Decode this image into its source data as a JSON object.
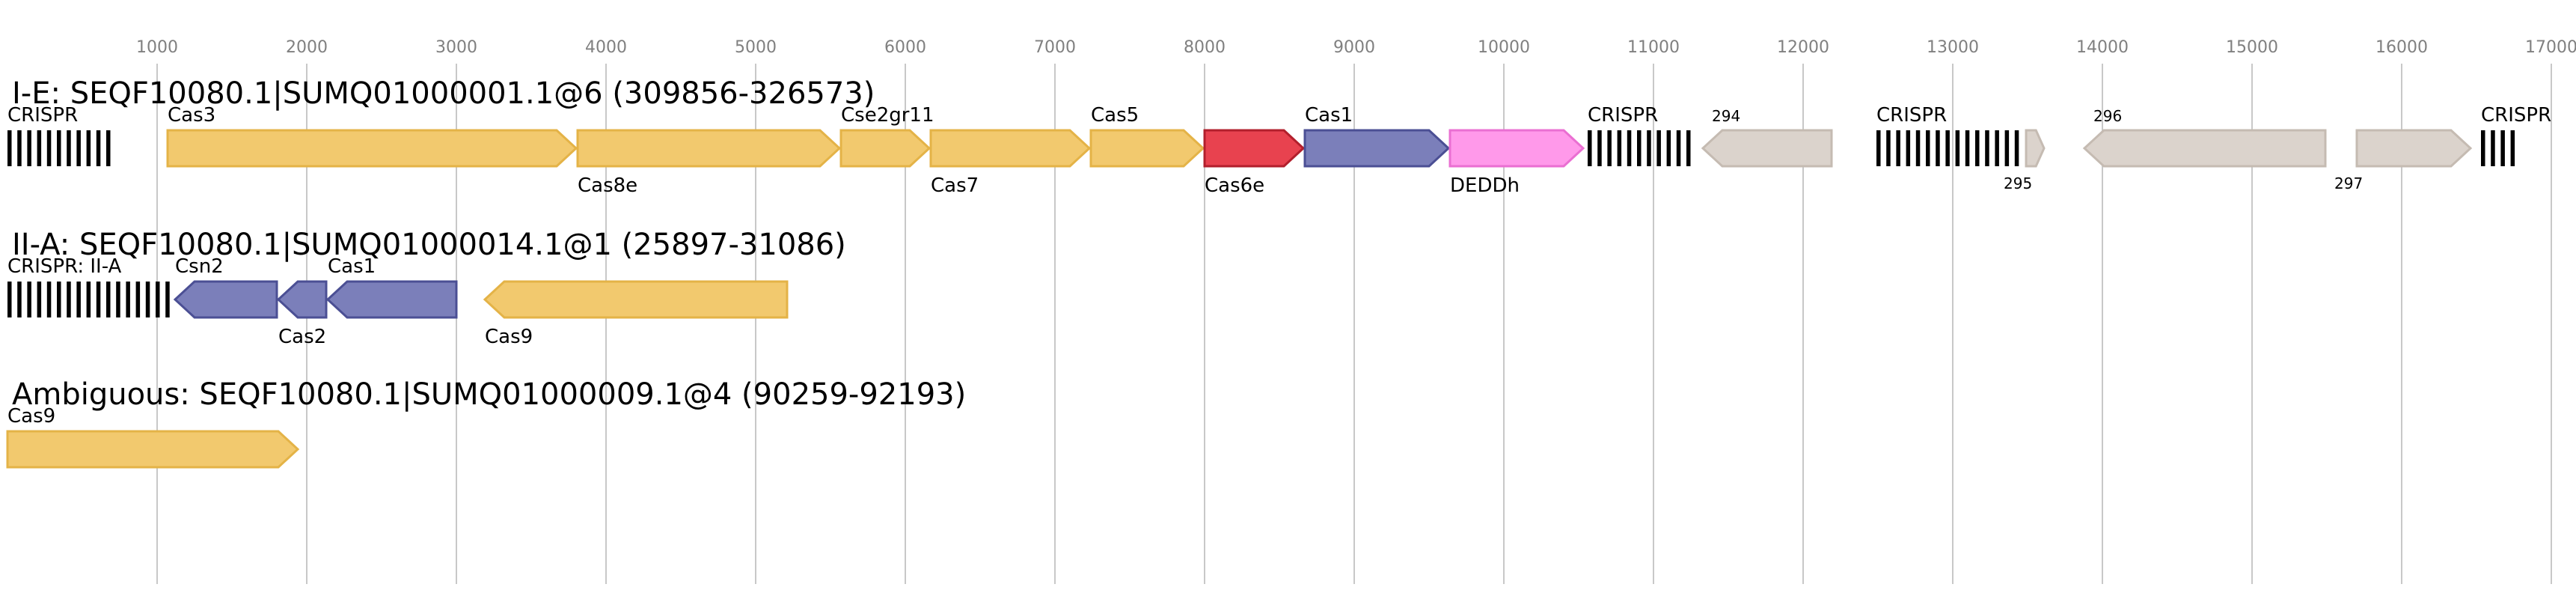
{
  "axis": {
    "ticks": [
      1000,
      2000,
      3000,
      4000,
      5000,
      6000,
      7000,
      8000,
      9000,
      10000,
      11000,
      12000,
      13000,
      14000,
      15000,
      16000,
      17000
    ],
    "gridlines": true,
    "grid_color": "#c8c8c8",
    "tick_color": "#808080"
  },
  "colors": {
    "cas_yellow": "#f2c96e",
    "cas_yellow_stroke": "#e4b347",
    "cas_red": "#e8424f",
    "cas_red_stroke": "#b21f2c",
    "cas_blue": "#7b7fba",
    "cas_blue_stroke": "#4b4f94",
    "cas_pink": "#ff99ea",
    "cas_pink_stroke": "#ea6fd2",
    "other_gray": "#dbd3cc",
    "other_gray_stroke": "#c5bbb2",
    "crispr_black": "#000000"
  },
  "tracks": [
    {
      "title": "I-E: SEQF10080.1|SUMQ01000001.1@6 (309856-326573)",
      "features": [
        {
          "kind": "crispr",
          "label": "CRISPR",
          "label_pos": "above",
          "start": 0,
          "end": 700
        },
        {
          "kind": "gene",
          "label": "Cas3",
          "label_pos": "above",
          "start": 1070,
          "end": 3800,
          "strand": 1,
          "color": "yellow"
        },
        {
          "kind": "gene",
          "label": "Cas8e",
          "label_pos": "below",
          "start": 3810,
          "end": 5560,
          "strand": 1,
          "color": "yellow"
        },
        {
          "kind": "gene",
          "label": "Cse2gr11",
          "label_pos": "above",
          "start": 5570,
          "end": 6160,
          "strand": 1,
          "color": "yellow"
        },
        {
          "kind": "gene",
          "label": "Cas7",
          "label_pos": "below",
          "start": 6170,
          "end": 7230,
          "strand": 1,
          "color": "yellow"
        },
        {
          "kind": "gene",
          "label": "Cas5",
          "label_pos": "above",
          "start": 7240,
          "end": 7990,
          "strand": 1,
          "color": "yellow"
        },
        {
          "kind": "gene",
          "label": "Cas6e",
          "label_pos": "below",
          "start": 8000,
          "end": 8660,
          "strand": 1,
          "color": "red"
        },
        {
          "kind": "gene",
          "label": "Cas1",
          "label_pos": "above",
          "start": 8670,
          "end": 9630,
          "strand": 1,
          "color": "blue"
        },
        {
          "kind": "gene",
          "label": "DEDDh",
          "label_pos": "below",
          "start": 9640,
          "end": 10530,
          "strand": 1,
          "color": "pink"
        },
        {
          "kind": "crispr",
          "label": "CRISPR",
          "label_pos": "above",
          "start": 10560,
          "end": 11260
        },
        {
          "kind": "gene",
          "label": "294",
          "label_pos": "above_small",
          "start": 11330,
          "end": 12190,
          "strand": -1,
          "color": "gray"
        },
        {
          "kind": "crispr",
          "label": "CRISPR",
          "label_pos": "above",
          "start": 12490,
          "end": 13490
        },
        {
          "kind": "gene",
          "label": "295",
          "label_pos": "below_small",
          "start": 13490,
          "end": 13610,
          "strand": 1,
          "color": "gray"
        },
        {
          "kind": "gene",
          "label": "296",
          "label_pos": "above_small",
          "start": 13880,
          "end": 15490,
          "strand": -1,
          "color": "gray"
        },
        {
          "kind": "gene",
          "label": "297",
          "label_pos": "below_small",
          "start": 15700,
          "end": 16460,
          "strand": 1,
          "color": "gray"
        },
        {
          "kind": "crispr",
          "label": "CRISPR",
          "label_pos": "above",
          "start": 16530,
          "end": 16760
        }
      ]
    },
    {
      "title": "II-A: SEQF10080.1|SUMQ01000014.1@1 (25897-31086)",
      "features": [
        {
          "kind": "crispr",
          "label": "CRISPR: II-A",
          "label_pos": "above",
          "start": 0,
          "end": 1100
        },
        {
          "kind": "gene",
          "label": "Csn2",
          "label_pos": "above",
          "start": 1120,
          "end": 1800,
          "strand": -1,
          "color": "blue"
        },
        {
          "kind": "gene",
          "label": "Cas2",
          "label_pos": "below",
          "start": 1810,
          "end": 2130,
          "strand": -1,
          "color": "blue"
        },
        {
          "kind": "gene",
          "label": "Cas1",
          "label_pos": "above",
          "start": 2140,
          "end": 3000,
          "strand": -1,
          "color": "blue"
        },
        {
          "kind": "gene",
          "label": "Cas9",
          "label_pos": "below",
          "start": 3190,
          "end": 5210,
          "strand": -1,
          "color": "yellow"
        }
      ]
    },
    {
      "title": "Ambiguous: SEQF10080.1|SUMQ01000009.1@4 (90259-92193)",
      "features": [
        {
          "kind": "gene",
          "label": "Cas9",
          "label_pos": "above",
          "start": 0,
          "end": 1940,
          "strand": 1,
          "color": "yellow"
        }
      ]
    }
  ]
}
